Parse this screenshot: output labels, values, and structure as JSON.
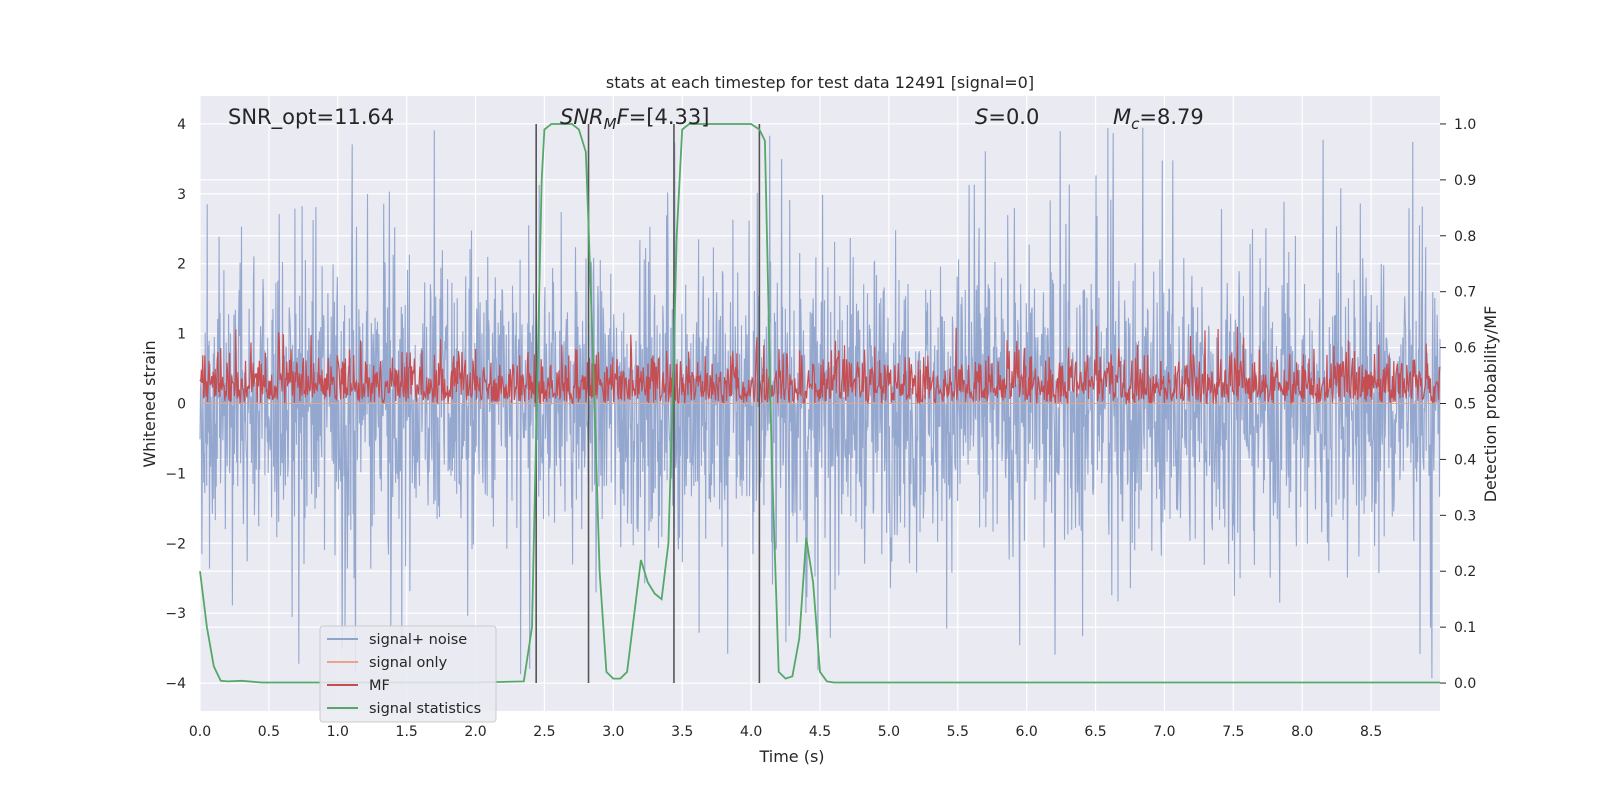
{
  "chart_data": {
    "type": "line",
    "title": "stats at each timestep for test data 12491 [signal=0]",
    "xlabel": "Time (s)",
    "ylabel": "Whitened strain",
    "y2label": "Detection probability/MF",
    "xlim": [
      0,
      9
    ],
    "ylim": [
      -4.4,
      4.4
    ],
    "y2lim": [
      -0.05,
      1.05
    ],
    "xticks": [
      0.0,
      0.5,
      1.0,
      1.5,
      2.0,
      2.5,
      3.0,
      3.5,
      4.0,
      4.5,
      5.0,
      5.5,
      6.0,
      6.5,
      7.0,
      7.5,
      8.0,
      8.5
    ],
    "xtick_labels": [
      "0.0",
      "0.5",
      "1.0",
      "1.5",
      "2.0",
      "2.5",
      "3.0",
      "3.5",
      "4.0",
      "4.5",
      "5.0",
      "5.5",
      "6.0",
      "6.5",
      "7.0",
      "7.5",
      "8.0",
      "8.5"
    ],
    "yticks": [
      -4,
      -3,
      -2,
      -1,
      0,
      1,
      2,
      3,
      4
    ],
    "ytick_labels": [
      "−4",
      "−3",
      "−2",
      "−1",
      "0",
      "1",
      "2",
      "3",
      "4"
    ],
    "y2ticks": [
      0.0,
      0.1,
      0.2,
      0.3,
      0.4,
      0.5,
      0.6,
      0.7,
      0.8,
      0.9,
      1.0
    ],
    "y2tick_labels": [
      "0.0",
      "0.1",
      "0.2",
      "0.3",
      "0.4",
      "0.5",
      "0.6",
      "0.7",
      "0.8",
      "0.9",
      "1.0"
    ],
    "grid": true,
    "legend_position": "lower-left",
    "annotations": [
      {
        "text": "SNR_opt=11.64",
        "x": 0.2,
        "y": 4.1
      },
      {
        "text": "SNR_MF=[4.33]",
        "x": 2.6,
        "y": 4.1
      },
      {
        "text": "S=0.0",
        "x": 5.6,
        "y": 4.1
      },
      {
        "text": "M_c=8.79",
        "x": 6.6,
        "y": 4.1
      }
    ],
    "vlines": [
      2.44,
      2.82,
      3.44,
      4.06
    ],
    "series": [
      {
        "name": "signal+ noise",
        "axis": "left",
        "color": "#8fa3cc",
        "description": "whitened noise strain, amplitude roughly within ±2.5 with peaks near ±3.6",
        "envelope": {
          "x": [
            0,
            9
          ],
          "typical_peak": 2.5,
          "max_peak": 4.0,
          "min_peak": -4.0
        }
      },
      {
        "name": "signal only",
        "axis": "left",
        "color": "#e8a58a",
        "values_note": "zero (signal=0)",
        "x": [
          0,
          9
        ],
        "y": [
          0,
          0
        ]
      },
      {
        "name": "MF",
        "axis": "right",
        "color": "#c44e52",
        "description": "matched-filter output, noise band between 0.5 and about 0.62",
        "band": {
          "low": 0.5,
          "typical_high": 0.57,
          "max_high": 0.64
        }
      },
      {
        "name": "signal statistics",
        "axis": "right",
        "color": "#55a868",
        "x": [
          0.0,
          0.05,
          0.1,
          0.15,
          0.2,
          0.3,
          0.45,
          1.0,
          2.0,
          2.35,
          2.41,
          2.44,
          2.48,
          2.5,
          2.55,
          2.6,
          2.7,
          2.75,
          2.8,
          2.82,
          2.85,
          2.9,
          2.95,
          3.0,
          3.05,
          3.1,
          3.15,
          3.2,
          3.25,
          3.3,
          3.35,
          3.4,
          3.43,
          3.46,
          3.5,
          3.55,
          3.65,
          3.8,
          4.0,
          4.06,
          4.1,
          4.15,
          4.2,
          4.25,
          4.3,
          4.35,
          4.4,
          4.45,
          4.5,
          4.55,
          4.6,
          4.7,
          5.0,
          9.0
        ],
        "y": [
          0.2,
          0.1,
          0.03,
          0.004,
          0.003,
          0.004,
          0.001,
          0.001,
          0.001,
          0.003,
          0.1,
          0.45,
          0.9,
          0.99,
          1.0,
          1.0,
          1.0,
          0.99,
          0.95,
          0.82,
          0.6,
          0.2,
          0.02,
          0.008,
          0.008,
          0.02,
          0.12,
          0.22,
          0.18,
          0.16,
          0.15,
          0.25,
          0.5,
          0.8,
          0.99,
          1.0,
          1.0,
          1.0,
          1.0,
          0.99,
          0.97,
          0.4,
          0.02,
          0.008,
          0.012,
          0.08,
          0.26,
          0.18,
          0.02,
          0.003,
          0.001,
          0.001,
          0.001,
          0.001
        ]
      }
    ]
  }
}
